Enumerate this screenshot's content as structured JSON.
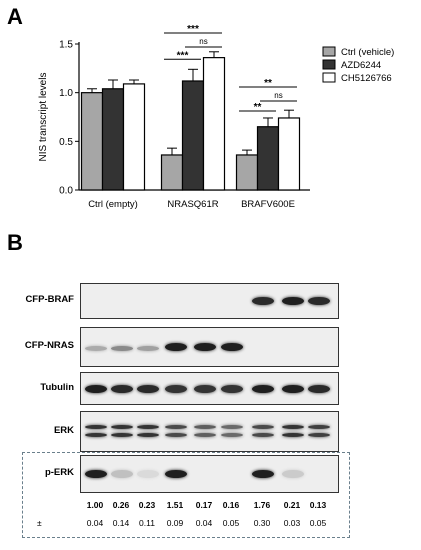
{
  "panels": {
    "a": "A",
    "b": "B"
  },
  "chart_data": {
    "type": "bar",
    "ylabel": "NIS transcript levels",
    "ylim": [
      0,
      1.5
    ],
    "yticks": [
      "0.0",
      "0.5",
      "1.0",
      "1.5"
    ],
    "categories": [
      "Ctrl (empty)",
      "NRASQ61R",
      "BRAFV600E"
    ],
    "series": [
      {
        "name": "Ctrl (vehicle)",
        "color": "#a6a6a6",
        "values": [
          1.0,
          0.36,
          0.36
        ],
        "errors": [
          0.04,
          0.07,
          0.05
        ]
      },
      {
        "name": "AZD6244",
        "color": "#333333",
        "values": [
          1.04,
          1.12,
          0.65
        ],
        "errors": [
          0.09,
          0.12,
          0.09
        ]
      },
      {
        "name": "CH5126766",
        "color": "#ffffff",
        "values": [
          1.09,
          1.36,
          0.74
        ],
        "errors": [
          0.04,
          0.06,
          0.08
        ]
      }
    ],
    "legend": "right",
    "annotations": [
      "***",
      "***",
      "ns",
      "**",
      "**",
      "ns"
    ]
  },
  "blot": {
    "rows": [
      {
        "label": "CFP-BRAF",
        "bands": [
          0,
          0,
          0,
          0,
          0,
          0,
          0.9,
          0.95,
          0.9
        ]
      },
      {
        "label": "CFP-NRAS",
        "bands": [
          0.3,
          0.45,
          0.35,
          0.95,
          0.95,
          0.95,
          0,
          0,
          0
        ]
      },
      {
        "label": "Tubulin",
        "bands": [
          0.95,
          0.9,
          0.9,
          0.85,
          0.85,
          0.85,
          0.95,
          0.95,
          0.9
        ]
      },
      {
        "label": "ERK",
        "bands": [
          0.85,
          0.85,
          0.85,
          0.75,
          0.65,
          0.6,
          0.75,
          0.85,
          0.8
        ]
      },
      {
        "label": "p-ERK",
        "bands": [
          0.95,
          0.2,
          0.08,
          0.95,
          0,
          0,
          0.95,
          0.15,
          0
        ]
      }
    ],
    "quant_values": [
      "1.00",
      "0.26",
      "0.23",
      "1.51",
      "0.17",
      "0.16",
      "1.76",
      "0.21",
      "0.13"
    ],
    "pm_symbol": "±",
    "pm_values": [
      "0.04",
      "0.14",
      "0.11",
      "0.09",
      "0.04",
      "0.05",
      "0.30",
      "0.03",
      "0.05"
    ]
  }
}
